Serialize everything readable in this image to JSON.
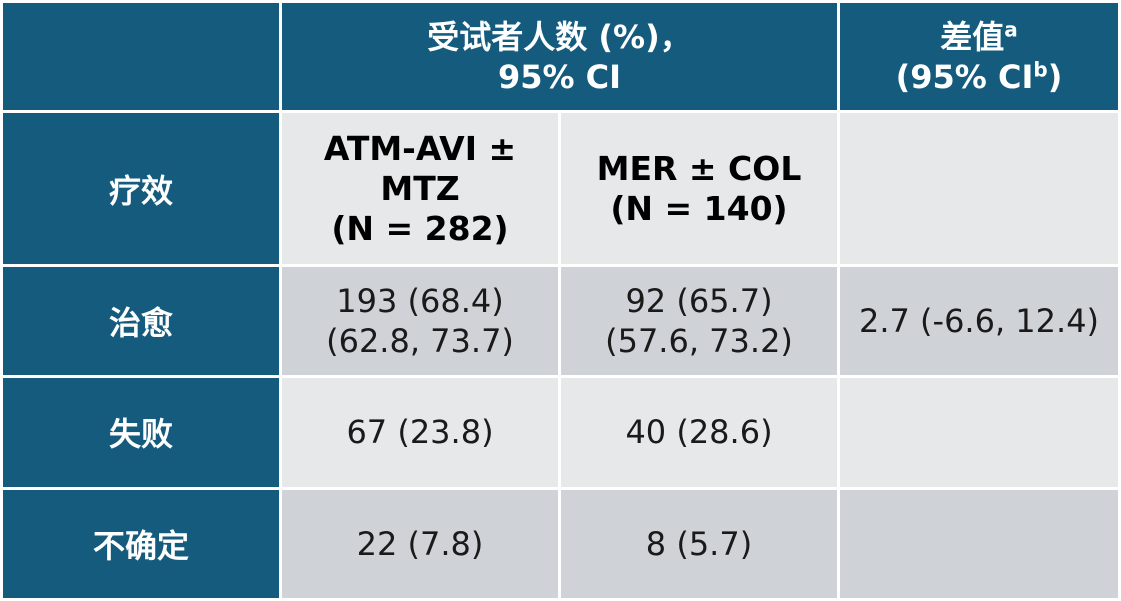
{
  "header": {
    "group_line1": "受试者人数 (%)，",
    "group_line2": "95% CI",
    "diff_line1": "差值",
    "diff_sup": "a",
    "diff_line2_pre": "(95% CI",
    "diff_line2_sup": "b",
    "diff_line2_post": ")"
  },
  "subheader": {
    "row_label": "疗效",
    "col1_line1": "ATM-AVI ±",
    "col1_line2": "MTZ",
    "col1_line3": "(N = 282)",
    "col2_line1": "MER ± COL",
    "col2_line2": "(N = 140)"
  },
  "rows": [
    {
      "label": "治愈",
      "col1_line1": "193 (68.4)",
      "col1_line2": "(62.8, 73.7)",
      "col2_line1": "92 (65.7)",
      "col2_line2": "(57.6, 73.2)",
      "diff": "2.7 (-6.6, 12.4)"
    },
    {
      "label": "失败",
      "col1_line1": "67 (23.8)",
      "col2_line1": "40 (28.6)",
      "diff": ""
    },
    {
      "label": "不确定",
      "col1_line1": "22 (7.8)",
      "col2_line1": "8 (5.7)",
      "diff": ""
    }
  ],
  "colors": {
    "header_bg": "#145b7d",
    "light_cell": "#e7e8ea",
    "dark_cell": "#cfd2d7"
  }
}
